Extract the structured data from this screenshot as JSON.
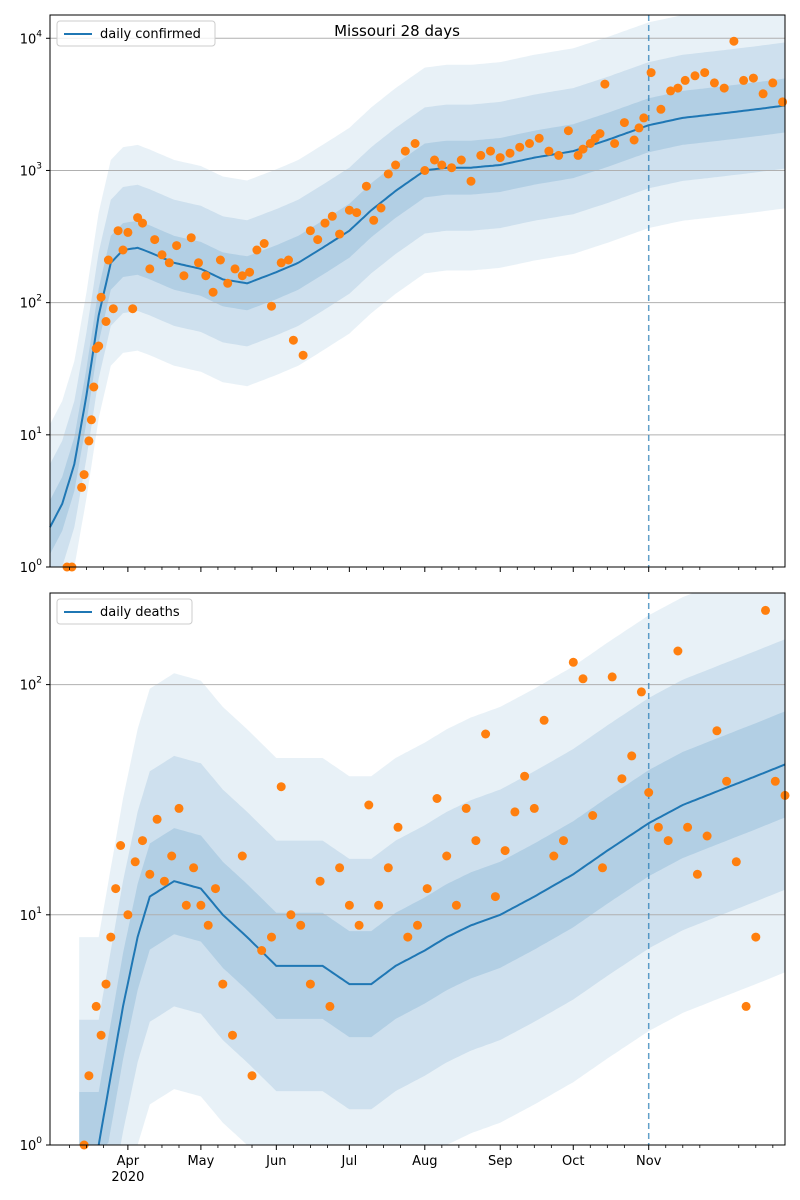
{
  "chart_data": [
    {
      "type": "line",
      "title": "Missouri 28 days",
      "xlabel": "",
      "ylabel": "",
      "yscale": "log",
      "ylim": [
        1,
        15000
      ],
      "xlim": [
        "2020-02-29",
        "2020-12-27"
      ],
      "grid": "horizontal major",
      "legend_position": "top-left",
      "legend": [
        "daily confirmed"
      ],
      "x_ticks": [
        "Apr",
        "May",
        "Jun",
        "Jul",
        "Aug",
        "Sep",
        "Oct",
        "Nov"
      ],
      "x_tick_dates": [
        "2020-04-01",
        "2020-05-01",
        "2020-06-01",
        "2020-07-01",
        "2020-08-01",
        "2020-09-01",
        "2020-10-01",
        "2020-11-01"
      ],
      "x_year_label": "2020",
      "y_ticks": [
        "10^0",
        "10^1",
        "10^2",
        "10^3",
        "10^4"
      ],
      "vline_date": "2020-11-01",
      "series": [
        {
          "name": "daily confirmed",
          "style": "line",
          "color": "#1f77b4",
          "x": [
            "2020-02-29",
            "2020-03-05",
            "2020-03-10",
            "2020-03-15",
            "2020-03-20",
            "2020-03-25",
            "2020-03-30",
            "2020-04-05",
            "2020-04-10",
            "2020-04-20",
            "2020-05-01",
            "2020-05-10",
            "2020-05-20",
            "2020-06-01",
            "2020-06-10",
            "2020-06-20",
            "2020-07-01",
            "2020-07-10",
            "2020-07-20",
            "2020-08-01",
            "2020-08-10",
            "2020-08-20",
            "2020-09-01",
            "2020-09-15",
            "2020-10-01",
            "2020-10-15",
            "2020-11-01",
            "2020-11-15",
            "2020-12-01",
            "2020-12-15",
            "2020-12-27"
          ],
          "y": [
            2,
            3,
            6,
            20,
            80,
            200,
            250,
            260,
            240,
            200,
            180,
            150,
            140,
            170,
            200,
            260,
            350,
            500,
            700,
            1000,
            1050,
            1050,
            1100,
            1250,
            1400,
            1700,
            2200,
            2500,
            2700,
            2900,
            3100
          ]
        },
        {
          "name": "",
          "style": "markers",
          "color": "#ff7f0e",
          "x": [
            "2020-03-07",
            "2020-03-09",
            "2020-03-13",
            "2020-03-14",
            "2020-03-16",
            "2020-03-17",
            "2020-03-18",
            "2020-03-19",
            "2020-03-20",
            "2020-03-21",
            "2020-03-23",
            "2020-03-24",
            "2020-03-26",
            "2020-03-28",
            "2020-03-30",
            "2020-04-01",
            "2020-04-03",
            "2020-04-05",
            "2020-04-07",
            "2020-04-10",
            "2020-04-12",
            "2020-04-15",
            "2020-04-18",
            "2020-04-21",
            "2020-04-24",
            "2020-04-27",
            "2020-04-30",
            "2020-05-03",
            "2020-05-06",
            "2020-05-09",
            "2020-05-12",
            "2020-05-15",
            "2020-05-18",
            "2020-05-21",
            "2020-05-24",
            "2020-05-27",
            "2020-05-30",
            "2020-06-03",
            "2020-06-06",
            "2020-06-08",
            "2020-06-12",
            "2020-06-15",
            "2020-06-18",
            "2020-06-21",
            "2020-06-24",
            "2020-06-27",
            "2020-07-01",
            "2020-07-04",
            "2020-07-08",
            "2020-07-11",
            "2020-07-14",
            "2020-07-17",
            "2020-07-20",
            "2020-07-24",
            "2020-07-28",
            "2020-08-01",
            "2020-08-05",
            "2020-08-08",
            "2020-08-12",
            "2020-08-16",
            "2020-08-20",
            "2020-08-24",
            "2020-08-28",
            "2020-09-01",
            "2020-09-05",
            "2020-09-09",
            "2020-09-13",
            "2020-09-17",
            "2020-09-21",
            "2020-09-25",
            "2020-09-29",
            "2020-10-03",
            "2020-10-05",
            "2020-10-08",
            "2020-10-10",
            "2020-10-12",
            "2020-10-14",
            "2020-10-18",
            "2020-10-22",
            "2020-10-26",
            "2020-10-28",
            "2020-10-30",
            "2020-11-02",
            "2020-11-06",
            "2020-11-10",
            "2020-11-13",
            "2020-11-16",
            "2020-11-20",
            "2020-11-24",
            "2020-11-28",
            "2020-12-02",
            "2020-12-06",
            "2020-12-10",
            "2020-12-14",
            "2020-12-18",
            "2020-12-22",
            "2020-12-26"
          ],
          "y": [
            1,
            1,
            4,
            5,
            9,
            13,
            23,
            45,
            47,
            110,
            72,
            210,
            90,
            350,
            250,
            340,
            90,
            440,
            400,
            180,
            300,
            230,
            200,
            270,
            160,
            310,
            200,
            160,
            120,
            210,
            140,
            180,
            160,
            170,
            250,
            280,
            94,
            200,
            210,
            52,
            40,
            350,
            300,
            400,
            450,
            330,
            500,
            480,
            760,
            420,
            520,
            940,
            1100,
            1400,
            1600,
            1000,
            1200,
            1100,
            1050,
            1200,
            830,
            1300,
            1400,
            1250,
            1350,
            1500,
            1600,
            1750,
            1400,
            1300,
            2000,
            1300,
            1450,
            1600,
            1750,
            1900,
            4500,
            1600,
            2300,
            1700,
            2100,
            2500,
            5500,
            2900,
            4000,
            4200,
            4800,
            5200,
            5500,
            4600,
            4200,
            9500,
            4800,
            5000,
            3800,
            4600,
            3300
          ]
        }
      ]
    },
    {
      "type": "line",
      "title": "",
      "xlabel": "",
      "ylabel": "",
      "yscale": "log",
      "ylim": [
        1,
        250
      ],
      "xlim": [
        "2020-02-29",
        "2020-12-27"
      ],
      "grid": "horizontal major",
      "legend_position": "top-left",
      "legend": [
        "daily deaths"
      ],
      "x_ticks": [
        "Apr",
        "May",
        "Jun",
        "Jul",
        "Aug",
        "Sep",
        "Oct",
        "Nov"
      ],
      "x_tick_dates": [
        "2020-04-01",
        "2020-05-01",
        "2020-06-01",
        "2020-07-01",
        "2020-08-01",
        "2020-09-01",
        "2020-10-01",
        "2020-11-01"
      ],
      "x_year_label": "2020",
      "y_ticks": [
        "10^0",
        "10^1",
        "10^2"
      ],
      "vline_date": "2020-11-01",
      "series": [
        {
          "name": "daily deaths",
          "style": "line",
          "color": "#1f77b4",
          "x": [
            "2020-03-20",
            "2020-03-25",
            "2020-03-30",
            "2020-04-05",
            "2020-04-10",
            "2020-04-20",
            "2020-05-01",
            "2020-05-10",
            "2020-05-20",
            "2020-06-01",
            "2020-06-10",
            "2020-06-20",
            "2020-07-01",
            "2020-07-10",
            "2020-07-20",
            "2020-08-01",
            "2020-08-10",
            "2020-08-20",
            "2020-09-01",
            "2020-09-15",
            "2020-10-01",
            "2020-10-15",
            "2020-11-01",
            "2020-11-15",
            "2020-12-01",
            "2020-12-15",
            "2020-12-27"
          ],
          "y": [
            1,
            2,
            4,
            8,
            12,
            14,
            13,
            10,
            8,
            6,
            6,
            6,
            5,
            5,
            6,
            7,
            8,
            9,
            10,
            12,
            15,
            19,
            25,
            30,
            35,
            40,
            45
          ]
        },
        {
          "name": "",
          "style": "markers",
          "color": "#ff7f0e",
          "x": [
            "2020-03-14",
            "2020-03-16",
            "2020-03-19",
            "2020-03-21",
            "2020-03-23",
            "2020-03-25",
            "2020-03-27",
            "2020-03-29",
            "2020-04-01",
            "2020-04-04",
            "2020-04-07",
            "2020-04-10",
            "2020-04-13",
            "2020-04-16",
            "2020-04-19",
            "2020-04-22",
            "2020-04-25",
            "2020-04-28",
            "2020-05-01",
            "2020-05-04",
            "2020-05-07",
            "2020-05-10",
            "2020-05-14",
            "2020-05-18",
            "2020-05-22",
            "2020-05-26",
            "2020-05-30",
            "2020-06-03",
            "2020-06-07",
            "2020-06-11",
            "2020-06-15",
            "2020-06-19",
            "2020-06-23",
            "2020-06-27",
            "2020-07-01",
            "2020-07-05",
            "2020-07-09",
            "2020-07-13",
            "2020-07-17",
            "2020-07-21",
            "2020-07-25",
            "2020-07-29",
            "2020-08-02",
            "2020-08-06",
            "2020-08-10",
            "2020-08-14",
            "2020-08-18",
            "2020-08-22",
            "2020-08-26",
            "2020-08-30",
            "2020-09-03",
            "2020-09-07",
            "2020-09-11",
            "2020-09-15",
            "2020-09-19",
            "2020-09-23",
            "2020-09-27",
            "2020-10-01",
            "2020-10-05",
            "2020-10-09",
            "2020-10-13",
            "2020-10-17",
            "2020-10-21",
            "2020-10-25",
            "2020-10-29",
            "2020-11-01",
            "2020-11-05",
            "2020-11-09",
            "2020-11-13",
            "2020-11-17",
            "2020-11-21",
            "2020-11-25",
            "2020-11-29",
            "2020-12-03",
            "2020-12-07",
            "2020-12-11",
            "2020-12-15",
            "2020-12-19",
            "2020-12-23",
            "2020-12-27"
          ],
          "y": [
            1,
            2,
            4,
            3,
            5,
            8,
            13,
            20,
            10,
            17,
            21,
            15,
            26,
            14,
            18,
            29,
            11,
            16,
            11,
            9,
            13,
            5,
            3,
            18,
            2,
            7,
            8,
            36,
            10,
            9,
            5,
            14,
            4,
            16,
            11,
            9,
            30,
            11,
            16,
            24,
            8,
            9,
            13,
            32,
            18,
            11,
            29,
            21,
            61,
            12,
            19,
            28,
            40,
            29,
            70,
            18,
            21,
            125,
            106,
            27,
            16,
            108,
            39,
            49,
            93,
            34,
            24,
            21,
            140,
            24,
            15,
            22,
            63,
            38,
            17,
            4,
            8,
            210,
            38,
            33
          ]
        }
      ]
    }
  ]
}
